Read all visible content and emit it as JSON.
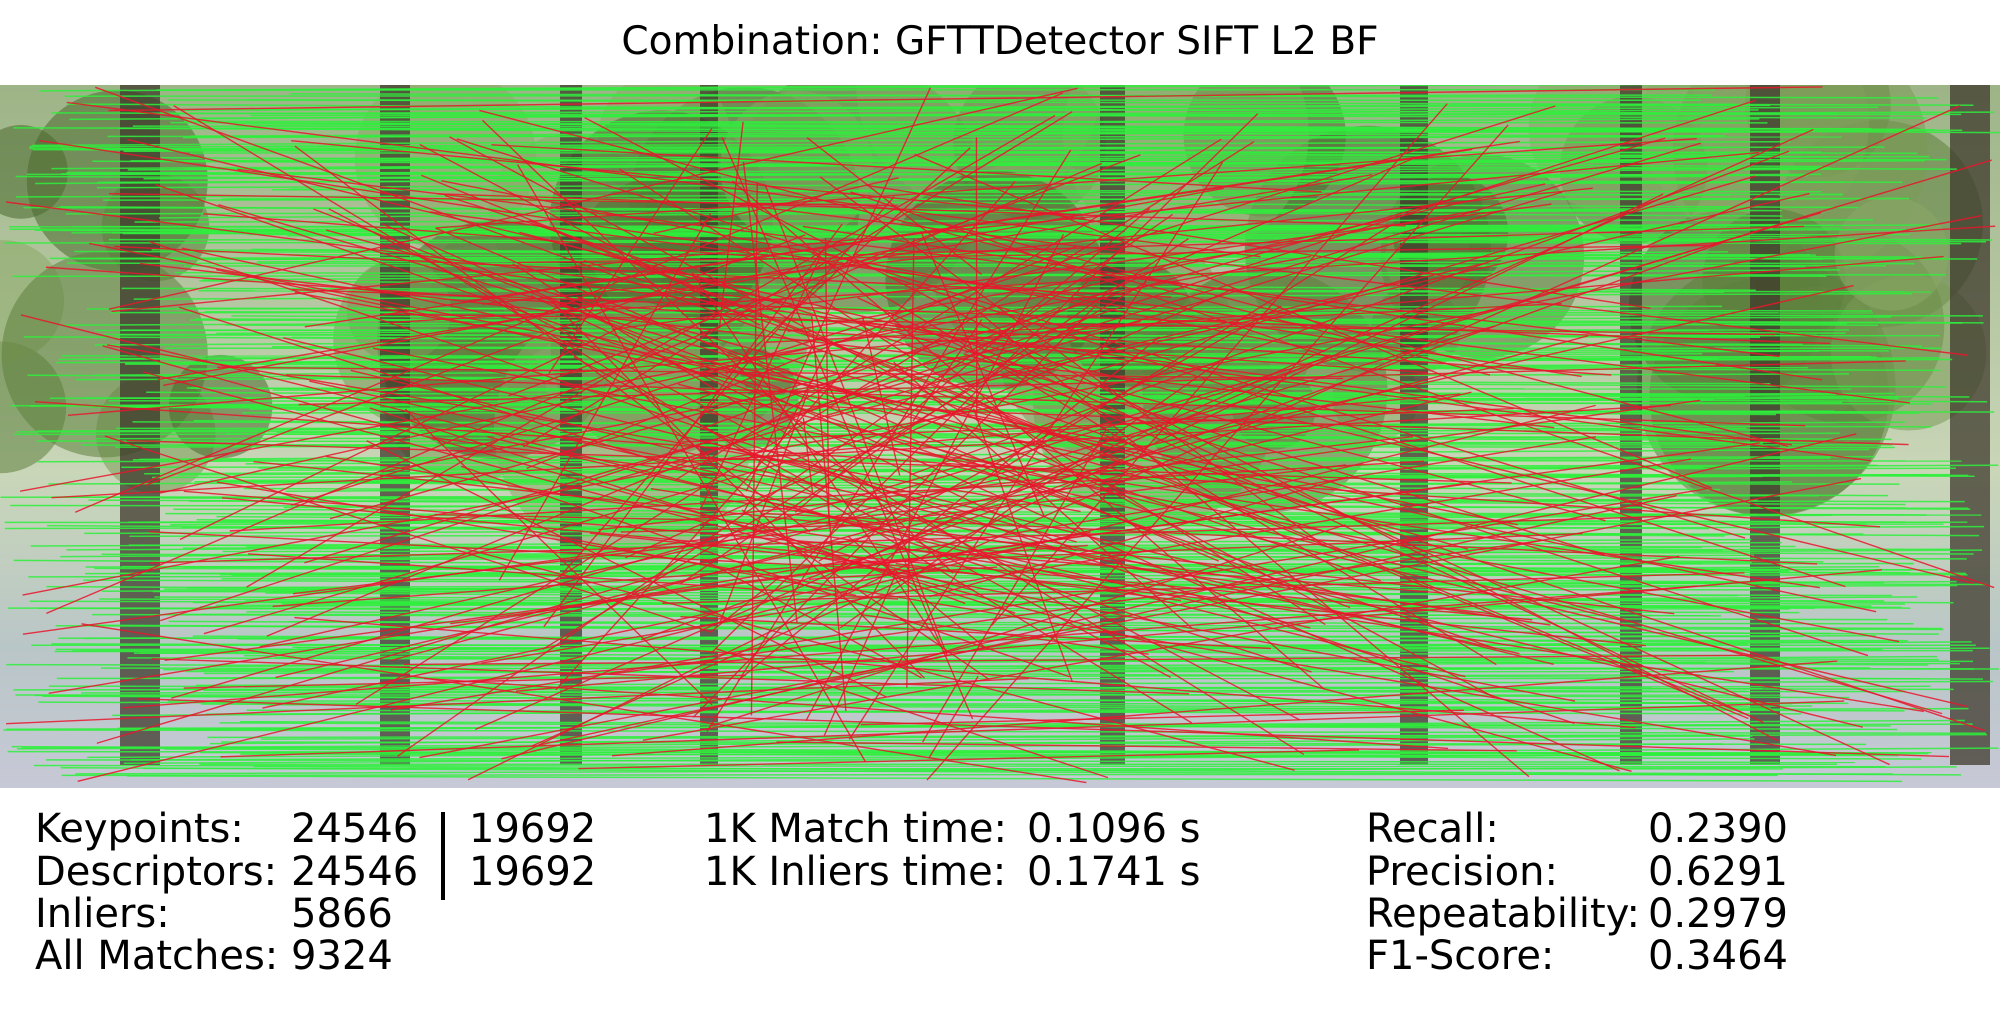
{
  "title": "Combination: GFTTDetector SIFT L2 BF",
  "left_stats": [
    {
      "label": "Keypoints:",
      "first": "24546",
      "second": "19692"
    },
    {
      "label": "Descriptors:",
      "first": "24546",
      "second": "19692"
    },
    {
      "label": "Inliers:",
      "first": "5866"
    },
    {
      "label": "All Matches:",
      "first": "9324"
    }
  ],
  "timing_stats": [
    {
      "label": "1K Match time:",
      "value": "0.1096 s"
    },
    {
      "label": "1K Inliers time:",
      "value": "0.1741 s"
    }
  ],
  "quality_stats": [
    {
      "label": "Recall:",
      "value": "0.2390"
    },
    {
      "label": "Precision:",
      "value": "0.6291"
    },
    {
      "label": "Repeatability:",
      "value": "0.2979"
    },
    {
      "label": "F1-Score:",
      "value": "0.3464"
    }
  ]
}
